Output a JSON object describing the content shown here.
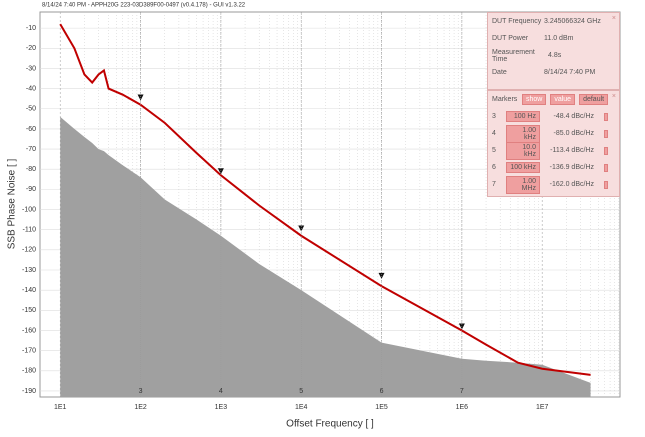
{
  "chart_data": {
    "type": "line",
    "title": "8/14/24 7:40 PM - APPH20G 223-03D389F00-0497 (v0.4.178) - GUI v1.3.22",
    "y_label": "SSB Phase Noise [ ]",
    "x_label": "Offset Frequency [ ]",
    "x_log": true,
    "grid": true,
    "xlim": [
      5.6,
      93000000
    ],
    "ylim": [
      -193,
      -2
    ],
    "xticks": [
      {
        "value": 10,
        "label": "1E1"
      },
      {
        "value": 100,
        "label": "1E2"
      },
      {
        "value": 1000,
        "label": "1E3"
      },
      {
        "value": 10000,
        "label": "1E4"
      },
      {
        "value": 100000,
        "label": "1E5"
      },
      {
        "value": 1000000,
        "label": "1E6"
      },
      {
        "value": 10000000,
        "label": "1E7"
      }
    ],
    "yticks": [
      -10,
      -20,
      -30,
      -40,
      -50,
      -60,
      -70,
      -80,
      -90,
      -100,
      -110,
      -120,
      -130,
      -140,
      -150,
      -160,
      -170,
      -180,
      -190
    ],
    "x": [
      10,
      15,
      20,
      25,
      30,
      35,
      40,
      60,
      100,
      200,
      500,
      1000,
      3000,
      10000,
      100000,
      1000000,
      2000000,
      5000000,
      10000000,
      40000000
    ],
    "series": [
      {
        "color": "#c00000",
        "values": [
          -8,
          -20,
          -33,
          -37,
          -33,
          -31,
          -40,
          -43,
          -48,
          -57,
          -72,
          -83,
          -98,
          -113,
          -138,
          -160,
          -167,
          -176,
          -179,
          -182
        ]
      },
      {
        "color": "#a0a0a0",
        "area": true,
        "values": [
          -54,
          -60,
          -64,
          -67,
          -70,
          -71,
          -73,
          -78,
          -84,
          -95,
          -105,
          -113,
          -127,
          -140,
          -166,
          -174,
          -175,
          -176,
          -177,
          -186
        ]
      }
    ],
    "markers": {
      "color": "#111111",
      "ids": [
        "3",
        "4",
        "5",
        "6",
        "7"
      ],
      "x": [
        100,
        1000,
        10000,
        100000,
        1000000
      ],
      "x_labels": [
        "100 Hz",
        "1.00 kHz",
        "10.0 kHz",
        "100 kHz",
        "1.00 MHz"
      ],
      "values": [
        -48.4,
        -85.0,
        -113.4,
        -136.9,
        -162.0
      ],
      "value_labels": [
        "-48.4 dBc/Hz",
        "-85.0 dBc/Hz",
        "-113.4 dBc/Hz",
        "-136.9 dBc/Hz",
        "-162.0 dBc/Hz"
      ]
    }
  },
  "info": [
    [
      "DUT Frequency",
      "3.245066324 GHz"
    ],
    [
      "DUT Power",
      "11.0 dBm"
    ],
    [
      "Measurement Time",
      "4.8s"
    ],
    [
      "Date",
      "8/14/24 7:40 PM"
    ]
  ],
  "marker_panel": {
    "title": "Markers",
    "buttons": [
      "show",
      "value",
      "default"
    ]
  }
}
